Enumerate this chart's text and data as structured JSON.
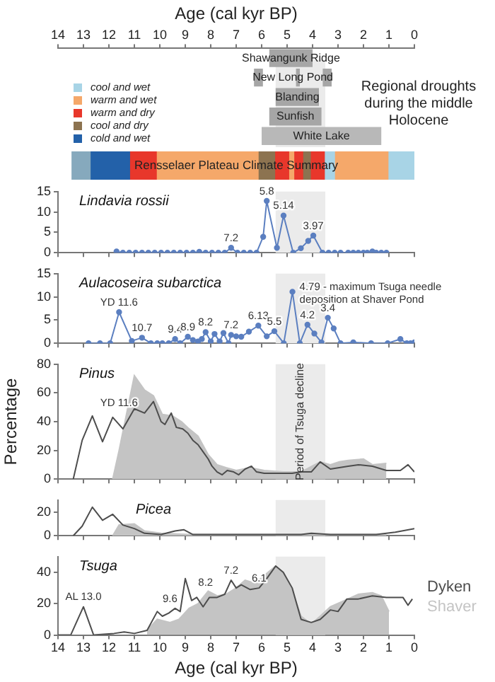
{
  "chart_data": [
    {
      "type": "bar",
      "orientation": "horizontal",
      "xlabel": "Age (cal kyr BP)",
      "categories": [
        "Shawangunk Ridge",
        "New Long Pond",
        "Blanding",
        "Sunfish",
        "White Lake"
      ],
      "xlim": [
        14,
        0
      ],
      "xticks": [
        14,
        13,
        12,
        11,
        10,
        9,
        8,
        7,
        6,
        5,
        4,
        3,
        2,
        1,
        0
      ],
      "series": [
        {
          "color": "#a6a6a6",
          "values": [
            1.7,
            0.35,
            1.7,
            2.05,
            null
          ],
          "base": [
            4.0,
            5.95,
            3.75,
            3.65,
            null
          ]
        },
        {
          "color": "#a6a6a6",
          "values": [
            null,
            0.15,
            null,
            null,
            null
          ],
          "base": [
            null,
            4.5,
            null,
            null,
            null
          ]
        },
        {
          "color": "#a6a6a6",
          "values": [
            null,
            0.35,
            null,
            null,
            null
          ],
          "base": [
            null,
            3.25,
            null,
            null,
            null
          ]
        },
        {
          "color": "#b8b8b8",
          "values": [
            null,
            null,
            null,
            null,
            4.7
          ],
          "base": [
            null,
            null,
            null,
            null,
            1.3
          ]
        }
      ],
      "bands": [
        {
          "axis": "x",
          "from": 5.45,
          "to": 3.5,
          "color": "#ebebeb"
        }
      ],
      "annotations": [
        "Regional droughts during the middle Holocene"
      ]
    },
    {
      "type": "bar",
      "orientation": "horizontal",
      "stacked": true,
      "categories": [
        null
      ],
      "xlim": [
        14,
        0
      ],
      "tick_labels": false,
      "legend": "top left",
      "series": [
        {
          "name": "cool and wet",
          "color": "#a8d4e6",
          "values": [
            1.0
          ]
        },
        {
          "name": "warm and wet",
          "color": "#f5a86a",
          "values": [
            2.1
          ]
        },
        {
          "color": "#a8d4e6",
          "values": [
            0.4
          ]
        },
        {
          "name": "warm and dry",
          "color": "#e8372b",
          "values": [
            0.55
          ]
        },
        {
          "name": "cool and dry",
          "color": "#8c7350",
          "values": [
            0.3
          ]
        },
        {
          "color": "#e8372b",
          "values": [
            0.35
          ]
        },
        {
          "color": "#f5a86a",
          "values": [
            0.2
          ]
        },
        {
          "color": "#e8372b",
          "values": [
            0.55
          ]
        },
        {
          "color": "#8c7350",
          "values": [
            0.65
          ]
        },
        {
          "color": "#f5a86a",
          "values": [
            4.0
          ]
        },
        {
          "color": "#e8372b",
          "values": [
            1.05
          ]
        },
        {
          "name": "cold and wet",
          "color": "#2361a9",
          "values": [
            1.55
          ]
        },
        {
          "color": "#86a9bd",
          "values": [
            0.75
          ]
        }
      ],
      "annotations": [
        "Rensselaer Plateau Climate Summary"
      ]
    },
    {
      "type": "line",
      "title": "Lindavia rossii",
      "marker": "circle",
      "xlim": [
        14,
        0
      ],
      "xticks": [
        14,
        13,
        12,
        11,
        10,
        9,
        8,
        7,
        6,
        5,
        4,
        3,
        2,
        1,
        0
      ],
      "ylim": [
        0,
        15
      ],
      "yticks": [
        0,
        5,
        10,
        15
      ],
      "tick_labels": "y",
      "series": [
        {
          "color": "#5b7fc0",
          "x": [
            11.7,
            11.45,
            11.2,
            10.95,
            10.7,
            10.45,
            10.2,
            9.95,
            9.7,
            9.45,
            9.2,
            8.95,
            8.7,
            8.45,
            8.2,
            7.95,
            7.7,
            7.45,
            7.2,
            6.95,
            6.7,
            6.45,
            6.2,
            5.94,
            5.8,
            5.4,
            5.14,
            4.76,
            4.46,
            4.17,
            3.97,
            3.61,
            3.37,
            3.13,
            2.9,
            2.6,
            2.4,
            2.2,
            2.0,
            1.85,
            1.65,
            1.5,
            1.3,
            1.1
          ],
          "values": [
            0.3,
            0,
            0,
            0,
            0,
            0,
            0,
            0,
            0,
            0,
            0,
            0,
            0,
            0.2,
            0,
            0,
            0,
            0,
            1.2,
            0,
            0,
            0,
            0,
            3.9,
            12.7,
            1.2,
            9.1,
            0,
            1.1,
            2.9,
            4.2,
            0,
            0,
            0,
            0,
            0,
            0,
            0,
            0,
            0,
            0.3,
            0,
            0,
            0
          ]
        }
      ],
      "bands": [
        {
          "axis": "x",
          "from": 5.45,
          "to": 3.5,
          "color": "#ebebeb"
        }
      ],
      "annotations": [
        {
          "text": "7.2",
          "x": 7.2,
          "y": 1.2
        },
        {
          "text": "5.8",
          "x": 5.8,
          "y": 12.7
        },
        {
          "text": "5.14",
          "x": 5.14,
          "y": 9.1
        },
        {
          "text": "3.97",
          "x": 3.97,
          "y": 4.2
        }
      ]
    },
    {
      "type": "line",
      "title": "Aulacoseira subarctica",
      "marker": "circle",
      "xlim": [
        14,
        0
      ],
      "xticks": [
        14,
        13,
        12,
        11,
        10,
        9,
        8,
        7,
        6,
        5,
        4,
        3,
        2,
        1,
        0
      ],
      "ylim": [
        0,
        15
      ],
      "yticks": [
        0,
        5,
        10,
        15
      ],
      "tick_labels": "y",
      "series": [
        {
          "color": "#5b7fc0",
          "x": [
            12.8,
            12.35,
            11.95,
            11.6,
            11.1,
            10.7,
            10.35,
            10.1,
            9.9,
            9.65,
            9.4,
            9.2,
            8.9,
            8.7,
            8.5,
            8.35,
            8.2,
            8.0,
            7.85,
            7.65,
            7.5,
            7.3,
            7.2,
            7.0,
            6.8,
            6.5,
            6.13,
            5.8,
            5.5,
            5.13,
            4.79,
            4.5,
            4.2,
            3.93,
            3.65,
            3.4,
            3.17,
            2.9,
            2.4,
            1.7,
            1.05,
            0.55,
            0.3,
            0.15,
            0
          ],
          "values": [
            0,
            0,
            0,
            6.7,
            0.5,
            1.2,
            0,
            0,
            0,
            0,
            0.9,
            0,
            1.4,
            0.7,
            0.4,
            0.9,
            2.4,
            0.4,
            2.0,
            0.4,
            2.2,
            0,
            1.8,
            1.5,
            1.4,
            2.5,
            3.8,
            1.5,
            2.6,
            0,
            11.1,
            0,
            4.0,
            2.1,
            0.2,
            5.5,
            3.2,
            0,
            0.2,
            0,
            0,
            0.9,
            0,
            0,
            0.2
          ]
        }
      ],
      "bands": [
        {
          "axis": "x",
          "from": 5.45,
          "to": 3.5,
          "color": "#ebebeb"
        }
      ],
      "annotations": [
        {
          "text": "YD 11.6",
          "x": 11.6,
          "y": 6.7
        },
        {
          "text": "10.7",
          "x": 10.7,
          "y": 1.2
        },
        {
          "text": "9.4",
          "x": 9.4,
          "y": 0.9
        },
        {
          "text": "8.9",
          "x": 8.9,
          "y": 1.4
        },
        {
          "text": "8.2",
          "x": 8.2,
          "y": 2.4
        },
        {
          "text": "7.2",
          "x": 7.2,
          "y": 1.8
        },
        {
          "text": "6.13",
          "x": 6.13,
          "y": 3.8
        },
        {
          "text": "5.5",
          "x": 5.5,
          "y": 2.6
        },
        {
          "text": "4.79 - maximum Tsuga needle deposition at Shaver Pond",
          "x": 4.79,
          "y": 11.1
        },
        {
          "text": "4.2",
          "x": 4.2,
          "y": 4.0
        },
        {
          "text": "3.4",
          "x": 3.4,
          "y": 5.5
        }
      ]
    },
    {
      "type": "line",
      "title": "Pinus",
      "ylabel": "Percentage",
      "xlim": [
        14,
        0
      ],
      "xticks": [
        14,
        13,
        12,
        11,
        10,
        9,
        8,
        7,
        6,
        5,
        4,
        3,
        2,
        1,
        0
      ],
      "ylim": [
        0,
        80
      ],
      "yticks": [
        0,
        20,
        40,
        60,
        80
      ],
      "tick_labels": "y",
      "series": [
        {
          "color": "#4d4d4d",
          "x": [
            13.4,
            13.05,
            12.65,
            12.25,
            11.85,
            11.45,
            11.0,
            10.6,
            10.25,
            9.95,
            9.8,
            9.55,
            9.35,
            9.1,
            8.9,
            8.7,
            8.5,
            8.3,
            8.1,
            7.95,
            7.75,
            7.55,
            7.35,
            7.1,
            6.9,
            6.65,
            6.4,
            6.2,
            5.9,
            5.5,
            5.15,
            4.8,
            4.45,
            4.05,
            3.7,
            3.3,
            2.95,
            2.6,
            2.2,
            1.65,
            1.1,
            0.55,
            0.25,
            0
          ],
          "values": [
            0,
            27,
            44,
            26,
            43,
            35,
            49,
            46,
            54,
            40,
            38,
            46,
            36,
            35,
            32,
            27,
            24,
            19,
            14,
            9,
            5,
            3,
            6,
            5,
            3,
            7,
            9,
            5,
            4,
            4,
            4,
            4,
            5,
            5,
            12,
            7,
            8,
            9,
            10,
            9,
            6,
            6,
            10,
            5
          ]
        },
        {
          "type": "area",
          "color": "#c4c4c4",
          "x": [
            11.85,
            11.6,
            11.0,
            10.6,
            10.25,
            9.9,
            9.5,
            9.15,
            8.85,
            8.5,
            8.1,
            7.75,
            7.4,
            7.0,
            6.45,
            5.9,
            5.15,
            4.45,
            3.7,
            3.3,
            2.95,
            2.6,
            2.0,
            1.65,
            1.1
          ],
          "values": [
            0,
            20,
            72,
            62,
            58,
            45,
            44,
            40,
            35,
            30,
            17,
            10,
            8,
            6,
            8,
            6,
            5,
            5,
            12,
            10,
            12,
            13,
            14,
            10,
            11
          ]
        }
      ],
      "bands": [
        {
          "axis": "x",
          "from": 5.45,
          "to": 3.5,
          "color": "#ebebeb",
          "label": "Period of Tsuga decline"
        }
      ],
      "annotations": [
        {
          "text": "YD 11.6",
          "x": 11.6,
          "y": 46
        }
      ]
    },
    {
      "type": "line",
      "title": "Picea",
      "xlim": [
        14,
        0
      ],
      "xticks": [
        14,
        13,
        12,
        11,
        10,
        9,
        8,
        7,
        6,
        5,
        4,
        3,
        2,
        1,
        0
      ],
      "ylim": [
        0,
        30
      ],
      "yticks": [
        0,
        20
      ],
      "tick_labels": "y",
      "series": [
        {
          "color": "#4d4d4d",
          "x": [
            13.4,
            13.05,
            12.65,
            12.25,
            11.85,
            11.45,
            11.0,
            10.6,
            9.95,
            9.4,
            9.05,
            8.7,
            7.95,
            6.1,
            4.45,
            4.05,
            3.3,
            1.5,
            0.75,
            0
          ],
          "values": [
            0,
            8,
            24,
            13,
            18,
            9,
            6,
            2,
            1,
            4,
            5,
            1,
            1,
            1,
            1,
            2,
            1,
            1,
            3,
            6
          ]
        },
        {
          "type": "area",
          "color": "#c4c4c4",
          "x": [
            11.85,
            11.6,
            11.0,
            10.6,
            9.95,
            8.85,
            7.0,
            4.45,
            1.1
          ],
          "values": [
            0,
            9,
            10,
            4,
            2,
            1,
            1,
            1,
            1
          ]
        }
      ],
      "bands": [
        {
          "axis": "x",
          "from": 5.45,
          "to": 3.5,
          "color": "#ebebeb"
        }
      ]
    },
    {
      "type": "line",
      "title": "Tsuga",
      "xlabel": "Age (cal kyr BP)",
      "legend": "right",
      "xlim": [
        14,
        0
      ],
      "xticks": [
        14,
        13,
        12,
        11,
        10,
        9,
        8,
        7,
        6,
        5,
        4,
        3,
        2,
        1,
        0
      ],
      "ylim": [
        0,
        50
      ],
      "yticks": [
        0,
        20,
        40
      ],
      "series": [
        {
          "name": "Dyken",
          "color": "#4d4d4d",
          "x": [
            14,
            13.5,
            13.0,
            12.6,
            11.8,
            11.4,
            11.0,
            10.5,
            10.1,
            9.9,
            9.65,
            9.4,
            9.2,
            9.0,
            8.75,
            8.55,
            8.3,
            8.05,
            7.75,
            7.45,
            7.2,
            7.0,
            6.8,
            6.45,
            6.1,
            5.8,
            5.45,
            5.15,
            4.8,
            4.45,
            4.05,
            3.7,
            3.3,
            3.0,
            2.65,
            2.2,
            1.65,
            1.1,
            0.45,
            0.25,
            0.08
          ],
          "values": [
            0,
            0,
            18,
            0,
            1,
            2,
            1,
            3,
            15,
            12,
            14,
            17,
            15,
            36,
            22,
            24,
            18,
            24,
            24,
            26,
            35,
            30,
            32,
            29,
            30,
            36,
            44,
            40,
            30,
            10,
            8,
            10,
            16,
            15,
            23,
            23,
            25,
            24,
            24,
            19,
            23
          ]
        },
        {
          "name": "Shaver",
          "type": "area",
          "color": "#c4c4c4",
          "x": [
            10.5,
            10.1,
            9.6,
            9.25,
            8.85,
            8.5,
            8.1,
            7.75,
            7.4,
            7.0,
            6.65,
            6.25,
            5.9,
            5.45,
            5.15,
            4.8,
            4.45,
            4.05,
            3.7,
            3.3,
            2.75,
            2.2,
            1.65,
            1.3,
            1.0
          ],
          "values": [
            3,
            10,
            8,
            10,
            17,
            20,
            28,
            25,
            26,
            30,
            35,
            33,
            38,
            44,
            40,
            28,
            12,
            7,
            12,
            18,
            22,
            26,
            27,
            25,
            15
          ]
        }
      ],
      "bands": [
        {
          "axis": "x",
          "from": 5.45,
          "to": 3.5,
          "color": "#ebebeb"
        }
      ],
      "annotations": [
        {
          "text": "AL 13.0",
          "x": 13.0,
          "y": 18
        },
        {
          "text": "9.6",
          "x": 9.6,
          "y": 17
        },
        {
          "text": "8.2",
          "x": 8.2,
          "y": 27
        },
        {
          "text": "7.2",
          "x": 7.2,
          "y": 35
        },
        {
          "text": "6.1",
          "x": 6.1,
          "y": 30
        }
      ]
    }
  ]
}
